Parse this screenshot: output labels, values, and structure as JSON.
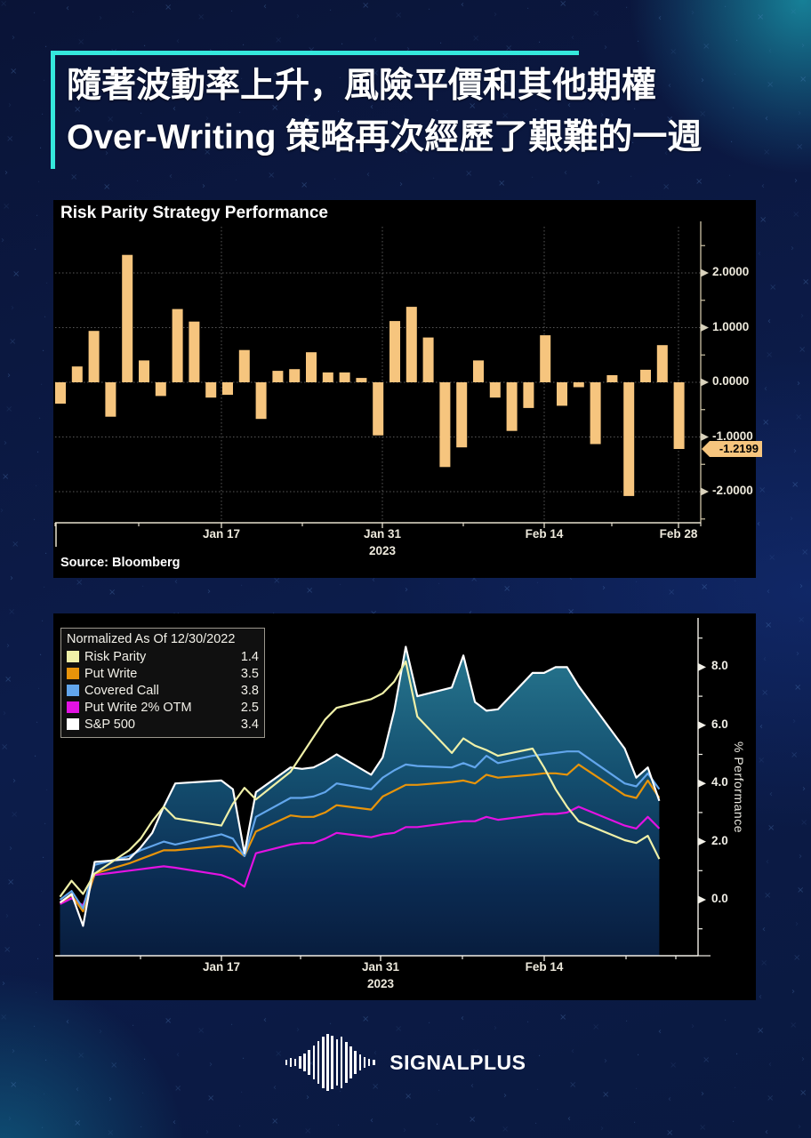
{
  "header": {
    "line1": "隨著波動率上升，風險平價和其他期權",
    "line2": "Over-Writing 策略再次經歷了艱難的一週",
    "accent_color": "#35E8DC"
  },
  "chart_data": [
    {
      "type": "bar",
      "title": "Risk Parity Strategy Performance",
      "source": "Source: Bloomberg",
      "bar_color": "#F6C57E",
      "last_value_label": "-1.2199",
      "y_ticks": [
        "2.0000",
        "1.0000",
        "0.0000",
        "-1.0000",
        "-2.0000"
      ],
      "y_tick_values": [
        2,
        1,
        0,
        -1,
        -2
      ],
      "x_ticks": [
        "Jan 17",
        "Jan 31",
        "Feb 14",
        "Feb 28"
      ],
      "x_year": "2023",
      "ylim": [
        -2.6,
        2.85
      ],
      "grid": true,
      "values": [
        -0.39,
        0.29,
        0.94,
        -0.63,
        2.33,
        0.4,
        -0.25,
        1.34,
        1.11,
        -0.28,
        -0.23,
        0.59,
        -0.67,
        0.21,
        0.24,
        0.55,
        0.18,
        0.18,
        0.08,
        -0.97,
        1.12,
        1.38,
        0.82,
        -1.55,
        -1.19,
        0.4,
        -0.28,
        -0.89,
        -0.47,
        0.86,
        -0.43,
        -0.09,
        -1.13,
        0.13,
        -2.08,
        0.23,
        0.68,
        -1.22
      ]
    },
    {
      "type": "line",
      "legend_title": "Normalized As Of 12/30/2022",
      "legend_position": "top-left",
      "ylabel": "% Performance",
      "y_ticks": [
        "8.0",
        "6.0",
        "4.0",
        "2.0",
        "0.0"
      ],
      "y_tick_values": [
        8,
        6,
        4,
        2,
        0
      ],
      "x_ticks": [
        "Jan 17",
        "Jan 31",
        "Feb 14"
      ],
      "x_year": "2023",
      "ylim": [
        -1.9,
        9.55
      ],
      "grid": false,
      "x_dates": [
        "Jan 3",
        "Jan 4",
        "Jan 5",
        "Jan 6",
        "Jan 9",
        "Jan 10",
        "Jan 11",
        "Jan 12",
        "Jan 13",
        "Jan 17",
        "Jan 18",
        "Jan 19",
        "Jan 20",
        "Jan 23",
        "Jan 24",
        "Jan 25",
        "Jan 26",
        "Jan 27",
        "Jan 30",
        "Jan 31",
        "Feb 1",
        "Feb 2",
        "Feb 3",
        "Feb 6",
        "Feb 7",
        "Feb 8",
        "Feb 9",
        "Feb 10",
        "Feb 13",
        "Feb 14",
        "Feb 15",
        "Feb 16",
        "Feb 17",
        "Feb 21",
        "Feb 22",
        "Feb 23",
        "Feb 24"
      ],
      "x_day_offsets": [
        0,
        1,
        2,
        3,
        6,
        7,
        8,
        9,
        10,
        14,
        15,
        16,
        17,
        20,
        21,
        22,
        23,
        24,
        27,
        28,
        29,
        30,
        31,
        34,
        35,
        36,
        37,
        38,
        41,
        42,
        43,
        44,
        45,
        49,
        50,
        51,
        52
      ],
      "series": [
        {
          "name": "Risk Parity",
          "end_value": "1.4",
          "color": "#EFF0A8",
          "values": [
            0.1,
            0.65,
            0.2,
            0.9,
            1.7,
            2.1,
            2.7,
            3.2,
            2.8,
            2.55,
            3.3,
            3.85,
            3.45,
            4.4,
            5.0,
            5.6,
            6.2,
            6.6,
            6.9,
            7.1,
            7.5,
            8.2,
            6.3,
            5.05,
            5.55,
            5.3,
            5.15,
            4.95,
            5.2,
            4.55,
            3.8,
            3.2,
            2.7,
            2.05,
            1.95,
            2.2,
            1.4
          ]
        },
        {
          "name": "Put Write",
          "end_value": "3.5",
          "color": "#E8940A",
          "values": [
            -0.1,
            0.15,
            -0.4,
            0.9,
            1.25,
            1.4,
            1.55,
            1.7,
            1.7,
            1.85,
            1.8,
            1.5,
            2.35,
            2.9,
            2.85,
            2.85,
            3.0,
            3.25,
            3.1,
            3.55,
            3.75,
            3.95,
            3.95,
            4.05,
            4.1,
            4.0,
            4.3,
            4.2,
            4.3,
            4.35,
            4.35,
            4.3,
            4.65,
            3.6,
            3.5,
            4.1,
            3.5
          ]
        },
        {
          "name": "Covered Call",
          "end_value": "3.8",
          "color": "#62A6EC",
          "values": [
            0.0,
            0.3,
            -0.3,
            1.2,
            1.5,
            1.7,
            1.85,
            2.0,
            1.9,
            2.25,
            2.1,
            1.5,
            2.85,
            3.5,
            3.5,
            3.55,
            3.7,
            4.0,
            3.8,
            4.2,
            4.45,
            4.65,
            4.6,
            4.55,
            4.7,
            4.55,
            4.95,
            4.7,
            4.95,
            5.0,
            5.05,
            5.1,
            5.1,
            4.0,
            3.9,
            4.35,
            3.8
          ]
        },
        {
          "name": "Put Write 2% OTM",
          "end_value": "2.5",
          "color": "#E312E3",
          "values": [
            -0.15,
            0.05,
            -0.2,
            0.85,
            1.0,
            1.05,
            1.1,
            1.15,
            1.1,
            0.85,
            0.7,
            0.45,
            1.6,
            1.9,
            1.95,
            1.95,
            2.1,
            2.3,
            2.15,
            2.25,
            2.3,
            2.5,
            2.5,
            2.65,
            2.7,
            2.7,
            2.85,
            2.75,
            2.9,
            2.95,
            2.95,
            3.0,
            3.2,
            2.55,
            2.45,
            2.85,
            2.45
          ]
        },
        {
          "name": "S&P 500",
          "end_value": "3.4",
          "color": "#FFFFFF",
          "area": true,
          "area_gradient": [
            "#2B7E95",
            "#145070",
            "#0B2B52",
            "#081D3E"
          ],
          "values": [
            -0.1,
            0.2,
            -0.9,
            1.3,
            1.4,
            1.8,
            2.3,
            3.2,
            4.0,
            4.1,
            3.8,
            1.6,
            3.7,
            4.55,
            4.5,
            4.55,
            4.75,
            5.0,
            4.3,
            4.9,
            6.5,
            8.7,
            7.0,
            7.3,
            8.4,
            6.8,
            6.5,
            6.55,
            7.8,
            7.8,
            8.0,
            8.0,
            7.35,
            5.2,
            4.2,
            4.55,
            3.4
          ]
        }
      ]
    }
  ],
  "footer": {
    "brand": "SIGNALPLUS"
  }
}
